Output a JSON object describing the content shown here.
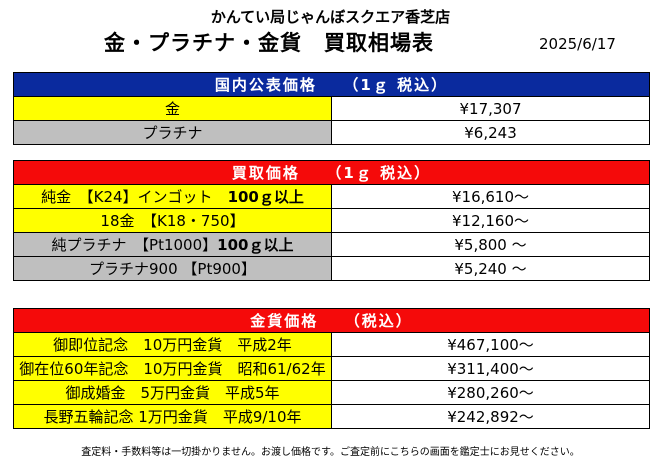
{
  "header": {
    "store": "かんてい局じゃんぼスクエア香芝店",
    "title": "金・プラチナ・金貨　買取相場表",
    "date": "2025/6/17"
  },
  "domestic": {
    "heading": "国内公表価格　　（1ｇ 税込）",
    "rows": [
      {
        "label": "金",
        "value": "¥17,307"
      },
      {
        "label": "プラチナ",
        "value": "¥6,243"
      }
    ]
  },
  "buyback": {
    "heading": "買取価格　　（1ｇ 税込）",
    "rows": [
      {
        "label": "純金　【K24】インゴット　",
        "bold": "100ｇ以上",
        "value": "¥16,610～"
      },
      {
        "label": "18金　【K18・750】",
        "bold": "",
        "value": "¥12,160～"
      },
      {
        "label": "純プラチナ　【Pt1000】",
        "bold": "100ｇ以上",
        "value": "¥5,800 ～"
      },
      {
        "label": "プラチナ900 【Pt900】",
        "bold": "",
        "value": "¥5,240 ～"
      }
    ]
  },
  "coins": {
    "heading": "金貨価格　　（税込）",
    "rows": [
      {
        "label": "御即位記念　10万円金貨　平成2年",
        "value": "¥467,100～"
      },
      {
        "label": "御在位60年記念　10万円金貨　昭和61/62年",
        "value": "¥311,400～"
      },
      {
        "label": "御成婚金　5万円金貨　平成5年",
        "value": "¥280,260～"
      },
      {
        "label": "長野五輪記念 1万円金貨　平成9/10年",
        "value": "¥242,892～"
      }
    ]
  },
  "footer": "査定料・手数料等は一切掛かりません。お渡し価格です。ご査定前にこちらの画面を鑑定士にお見せください。"
}
